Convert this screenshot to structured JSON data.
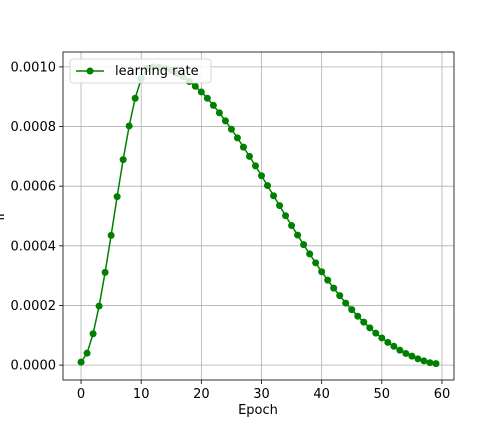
{
  "chart_data": {
    "type": "line",
    "title": "",
    "xlabel": "Epoch",
    "ylabel": "lr",
    "xlim": [
      -3,
      62
    ],
    "ylim": [
      -5e-05,
      0.00105
    ],
    "grid": true,
    "legend_placement": "top-left",
    "x_ticks": [
      0,
      10,
      20,
      30,
      40,
      50,
      60
    ],
    "x_tick_labels": [
      "0",
      "10",
      "20",
      "30",
      "40",
      "50",
      "60"
    ],
    "y_ticks": [
      0,
      0.0002,
      0.0004,
      0.0006,
      0.0008,
      0.001
    ],
    "y_tick_labels": [
      "0.0000",
      "0.0002",
      "0.0004",
      "0.0006",
      "0.0008",
      "0.0010"
    ],
    "series": [
      {
        "name": "learning rate",
        "color": "#008000",
        "marker": "circle",
        "x": [
          0,
          1,
          2,
          3,
          4,
          5,
          6,
          7,
          8,
          9,
          10,
          11,
          12,
          13,
          14,
          15,
          16,
          17,
          18,
          19,
          20,
          21,
          22,
          23,
          24,
          25,
          26,
          27,
          28,
          29,
          30,
          31,
          32,
          33,
          34,
          35,
          36,
          37,
          38,
          39,
          40,
          41,
          42,
          43,
          44,
          45,
          46,
          47,
          48,
          49,
          50,
          51,
          52,
          53,
          54,
          55,
          56,
          57,
          58,
          59
        ],
        "y": [
          1e-05,
          4e-05,
          0.000105,
          0.000198,
          0.000311,
          0.000435,
          0.000565,
          0.000689,
          0.000802,
          0.000895,
          0.00096,
          0.000995,
          0.001,
          0.000999,
          0.000995,
          0.000988,
          0.000978,
          0.000966,
          0.000951,
          0.000935,
          0.000916,
          0.000895,
          0.000871,
          0.000846,
          0.000819,
          0.000791,
          0.000762,
          0.000731,
          0.0007,
          0.000668,
          0.000635,
          0.000602,
          0.000568,
          0.000535,
          0.000501,
          0.000468,
          0.000436,
          0.000404,
          0.000373,
          0.000343,
          0.000313,
          0.000285,
          0.000258,
          0.000233,
          0.000208,
          0.000186,
          0.000164,
          0.000144,
          0.000125,
          0.000107,
          9.1e-05,
          7.6e-05,
          6.3e-05,
          5e-05,
          3.9e-05,
          3e-05,
          2.1e-05,
          1.4e-05,
          8e-06,
          5e-06
        ]
      }
    ]
  }
}
